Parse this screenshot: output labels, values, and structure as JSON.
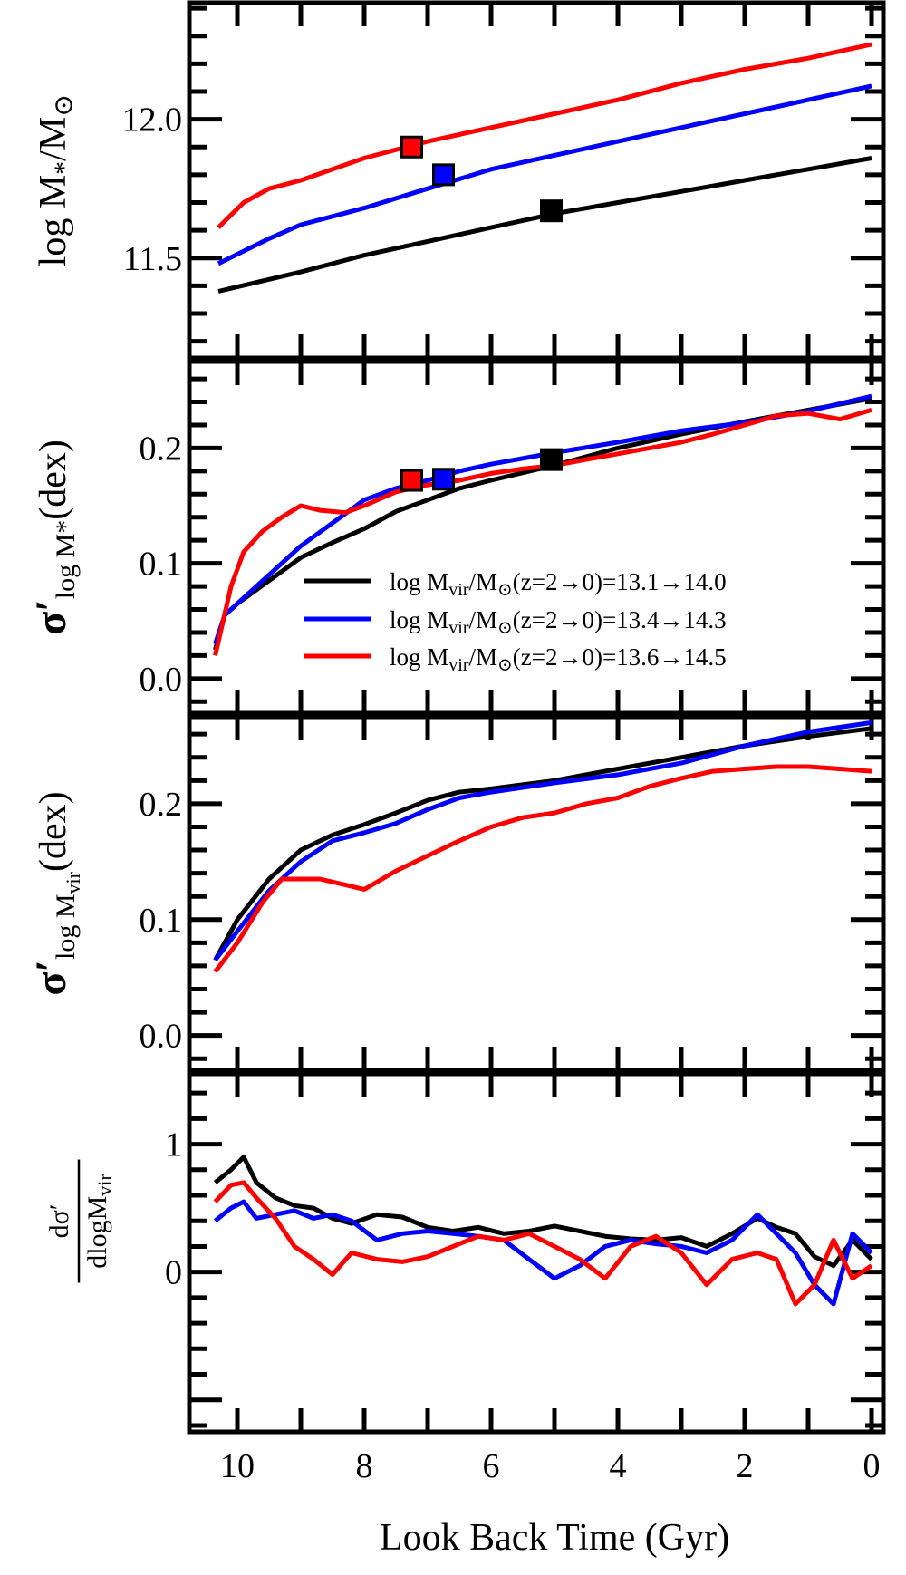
{
  "chart_data": [
    {
      "type": "line",
      "ylabel": "logM*/M⊙",
      "ylabel_parts": {
        "main": "log M",
        "sub": "*",
        "rest": "/M",
        "sym": "⊙"
      },
      "ylim": [
        11.14,
        12.42
      ],
      "xlim": [
        11,
        0
      ],
      "yticks": [
        11.5,
        12.0
      ],
      "ytick_labels": [
        "11.5",
        "12.0"
      ],
      "series": [
        {
          "color": "#000000",
          "x": [
            10.3,
            9,
            8,
            7,
            6,
            5,
            4,
            3,
            2,
            1,
            0
          ],
          "y": [
            11.38,
            11.45,
            11.51,
            11.56,
            11.61,
            11.66,
            11.7,
            11.74,
            11.78,
            11.82,
            11.86
          ]
        },
        {
          "color": "#0000ff",
          "x": [
            10.3,
            9.5,
            9,
            8,
            7,
            6,
            5,
            4,
            3,
            2,
            1,
            0
          ],
          "y": [
            11.48,
            11.57,
            11.62,
            11.68,
            11.75,
            11.82,
            11.87,
            11.92,
            11.97,
            12.02,
            12.07,
            12.12
          ]
        },
        {
          "color": "#ff0000",
          "x": [
            10.3,
            9.9,
            9.5,
            9,
            8,
            7,
            6,
            5,
            4,
            3,
            2,
            1,
            0
          ],
          "y": [
            11.61,
            11.7,
            11.75,
            11.78,
            11.86,
            11.92,
            11.97,
            12.02,
            12.07,
            12.13,
            12.18,
            12.22,
            12.27
          ]
        }
      ],
      "markers": [
        {
          "color": "#ff0000",
          "x": 7.25,
          "y": 11.9
        },
        {
          "color": "#0000ff",
          "x": 6.75,
          "y": 11.8
        },
        {
          "color": "#000000",
          "x": 5.05,
          "y": 11.67
        }
      ]
    },
    {
      "type": "line",
      "ylabel": "σ′logM*(dex)",
      "ylabel_parts": {
        "main": "σ′",
        "sub": "log M*",
        "rest": "(dex)"
      },
      "ylim": [
        -0.03,
        0.275
      ],
      "xlim": [
        11,
        0
      ],
      "yticks": [
        0.0,
        0.1,
        0.2
      ],
      "ytick_labels": [
        "0.0",
        "0.1",
        "0.2"
      ],
      "series": [
        {
          "color": "#000000",
          "x": [
            10.35,
            10.2,
            10,
            9.5,
            9,
            8.5,
            8,
            7.5,
            7,
            6.5,
            6,
            5,
            4,
            3,
            2,
            1,
            0
          ],
          "y": [
            0.025,
            0.055,
            0.065,
            0.085,
            0.105,
            0.118,
            0.13,
            0.145,
            0.155,
            0.165,
            0.172,
            0.185,
            0.2,
            0.212,
            0.223,
            0.233,
            0.243
          ]
        },
        {
          "color": "#0000ff",
          "x": [
            10.35,
            10.2,
            10,
            9.5,
            9,
            8.5,
            8,
            7.5,
            7,
            6.5,
            6,
            5,
            4,
            3,
            2,
            1,
            0
          ],
          "y": [
            0.03,
            0.055,
            0.065,
            0.09,
            0.115,
            0.135,
            0.155,
            0.165,
            0.172,
            0.18,
            0.186,
            0.196,
            0.205,
            0.215,
            0.222,
            0.232,
            0.245
          ]
        },
        {
          "color": "#ff0000",
          "x": [
            10.35,
            10.1,
            9.9,
            9.6,
            9.3,
            9,
            8.7,
            8.3,
            8,
            7.5,
            7,
            6.5,
            6,
            5.5,
            5,
            4.5,
            4,
            3.5,
            3,
            2.5,
            2,
            1.5,
            1,
            0.5,
            0
          ],
          "y": [
            0.02,
            0.08,
            0.11,
            0.128,
            0.14,
            0.15,
            0.146,
            0.144,
            0.15,
            0.162,
            0.168,
            0.172,
            0.178,
            0.182,
            0.185,
            0.19,
            0.195,
            0.2,
            0.205,
            0.212,
            0.22,
            0.228,
            0.23,
            0.225,
            0.233
          ]
        }
      ],
      "markers": [
        {
          "color": "#ff0000",
          "x": 7.25,
          "y": 0.172
        },
        {
          "color": "#0000ff",
          "x": 6.75,
          "y": 0.173
        },
        {
          "color": "#000000",
          "x": 5.05,
          "y": 0.19
        }
      ],
      "legend": {
        "placement": "lower-right",
        "entries": [
          {
            "color": "#000000",
            "label": "logMvir/M⊙(z=2→0)=13.1→14.0",
            "parts": {
              "a": "log M",
              "sub": "vir",
              "b": "/M",
              "sym": "⊙",
              "c": "(z=2→0)=13.1→14.0"
            }
          },
          {
            "color": "#0000ff",
            "label": "logMvir/M⊙(z=2→0)=13.4→14.3",
            "parts": {
              "a": "log M",
              "sub": "vir",
              "b": "/M",
              "sym": "⊙",
              "c": "(z=2→0)=13.4→14.3"
            }
          },
          {
            "color": "#ff0000",
            "label": "logMvir/M⊙(z=2→0)=13.6→14.5",
            "parts": {
              "a": "log M",
              "sub": "vir",
              "b": "/M",
              "sym": "⊙",
              "c": "(z=2→0)=13.6→14.5"
            }
          }
        ]
      }
    },
    {
      "type": "line",
      "ylabel": "σ′logMvir(dex)",
      "ylabel_parts": {
        "main": "σ′",
        "sub": "log M",
        "subsub": "vir",
        "rest": "(dex)"
      },
      "ylim": [
        -0.03,
        0.275
      ],
      "xlim": [
        11,
        0
      ],
      "yticks": [
        0.0,
        0.1,
        0.2
      ],
      "ytick_labels": [
        "0.0",
        "0.1",
        "0.2"
      ],
      "series": [
        {
          "color": "#000000",
          "x": [
            10.35,
            10,
            9.5,
            9,
            8.5,
            8,
            7.5,
            7,
            6.5,
            6,
            5,
            4,
            3,
            2,
            1,
            0
          ],
          "y": [
            0.065,
            0.1,
            0.135,
            0.16,
            0.173,
            0.182,
            0.192,
            0.203,
            0.21,
            0.213,
            0.22,
            0.23,
            0.24,
            0.25,
            0.258,
            0.265
          ]
        },
        {
          "color": "#0000ff",
          "x": [
            10.35,
            10,
            9.5,
            9,
            8.5,
            8,
            7.5,
            7,
            6.5,
            6,
            5,
            4,
            3,
            2,
            1,
            0
          ],
          "y": [
            0.065,
            0.09,
            0.125,
            0.15,
            0.168,
            0.175,
            0.183,
            0.195,
            0.205,
            0.21,
            0.218,
            0.225,
            0.235,
            0.25,
            0.262,
            0.27
          ]
        },
        {
          "color": "#ff0000",
          "x": [
            10.35,
            10,
            9.6,
            9.3,
            9,
            8.7,
            8.3,
            8,
            7.5,
            7,
            6.5,
            6,
            5.5,
            5,
            4.5,
            4,
            3.5,
            3,
            2.5,
            2,
            1.5,
            1,
            0.5,
            0
          ],
          "y": [
            0.055,
            0.08,
            0.115,
            0.135,
            0.135,
            0.135,
            0.13,
            0.126,
            0.142,
            0.155,
            0.168,
            0.18,
            0.188,
            0.192,
            0.2,
            0.205,
            0.215,
            0.222,
            0.228,
            0.23,
            0.232,
            0.232,
            0.23,
            0.228
          ]
        }
      ]
    },
    {
      "type": "line",
      "ylabel": "dσ′/dlogMvir",
      "ylabel_parts": {
        "num": "dσ′",
        "den": "dlogM",
        "densub": "vir"
      },
      "ylim": [
        -1.25,
        1.55
      ],
      "xlim": [
        11,
        0
      ],
      "yticks": [
        0,
        1
      ],
      "ytick_labels": [
        "0",
        "1"
      ],
      "xlabel": "Look Back Time (Gyr)",
      "xticks": [
        10,
        8,
        6,
        4,
        2,
        0
      ],
      "xtick_labels": [
        "10",
        "8",
        "6",
        "4",
        "2",
        "0"
      ],
      "series": [
        {
          "color": "#000000",
          "x": [
            10.35,
            10.1,
            9.9,
            9.7,
            9.4,
            9.1,
            8.8,
            8.5,
            8.2,
            7.8,
            7.4,
            7.0,
            6.6,
            6.2,
            5.8,
            5.4,
            5.0,
            4.6,
            4.2,
            3.8,
            3.4,
            3.0,
            2.6,
            2.2,
            1.8,
            1.5,
            1.2,
            0.9,
            0.6,
            0.3,
            0.0
          ],
          "y": [
            0.7,
            0.8,
            0.9,
            0.7,
            0.58,
            0.52,
            0.5,
            0.42,
            0.38,
            0.45,
            0.43,
            0.35,
            0.32,
            0.35,
            0.3,
            0.32,
            0.36,
            0.32,
            0.28,
            0.26,
            0.25,
            0.27,
            0.2,
            0.3,
            0.42,
            0.35,
            0.3,
            0.12,
            0.05,
            0.25,
            0.1
          ]
        },
        {
          "color": "#0000ff",
          "x": [
            10.35,
            10.1,
            9.9,
            9.7,
            9.4,
            9.1,
            8.8,
            8.5,
            8.2,
            7.8,
            7.4,
            7.0,
            6.6,
            6.2,
            5.8,
            5.4,
            5.0,
            4.6,
            4.2,
            3.8,
            3.4,
            3.0,
            2.6,
            2.2,
            1.8,
            1.5,
            1.2,
            0.9,
            0.6,
            0.3,
            0.0
          ],
          "y": [
            0.4,
            0.5,
            0.55,
            0.42,
            0.45,
            0.48,
            0.42,
            0.45,
            0.4,
            0.25,
            0.3,
            0.32,
            0.3,
            0.28,
            0.25,
            0.1,
            -0.05,
            0.05,
            0.2,
            0.25,
            0.22,
            0.2,
            0.15,
            0.25,
            0.45,
            0.3,
            0.15,
            -0.1,
            -0.25,
            0.3,
            0.15
          ]
        },
        {
          "color": "#ff0000",
          "x": [
            10.35,
            10.1,
            9.9,
            9.7,
            9.4,
            9.1,
            8.8,
            8.5,
            8.2,
            7.8,
            7.4,
            7.0,
            6.6,
            6.2,
            5.8,
            5.4,
            5.0,
            4.6,
            4.2,
            3.8,
            3.4,
            3.0,
            2.6,
            2.2,
            1.8,
            1.5,
            1.2,
            0.9,
            0.6,
            0.3,
            0.0
          ],
          "y": [
            0.55,
            0.68,
            0.7,
            0.58,
            0.42,
            0.2,
            0.1,
            -0.02,
            0.15,
            0.1,
            0.08,
            0.12,
            0.2,
            0.28,
            0.25,
            0.3,
            0.2,
            0.1,
            -0.05,
            0.2,
            0.28,
            0.15,
            -0.1,
            0.1,
            0.15,
            0.1,
            -0.25,
            -0.1,
            0.25,
            -0.05,
            0.05
          ]
        }
      ]
    }
  ]
}
